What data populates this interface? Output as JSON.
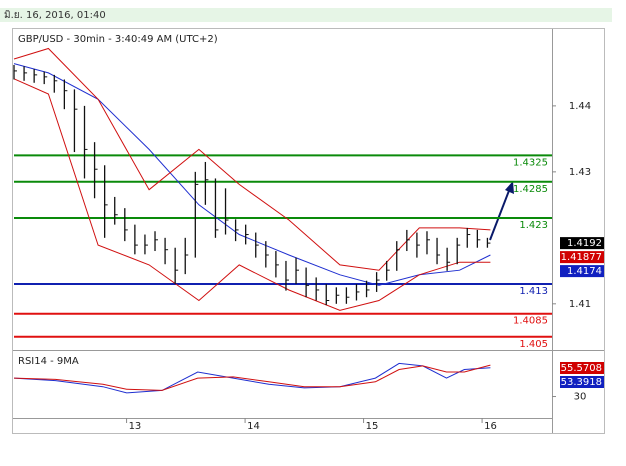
{
  "header": {
    "date": "มิ.ย. 16, 2016, 01:40"
  },
  "chart_data": [
    {
      "type": "hlc",
      "title": "GBP/USD - 30min - 3:40:49 AM (UTC+2)",
      "color": "#111111",
      "x": [
        12.05,
        12.135,
        12.22,
        12.305,
        12.39,
        12.475,
        12.56,
        12.645,
        12.73,
        12.815,
        12.9,
        12.985,
        13.07,
        13.155,
        13.24,
        13.325,
        13.41,
        13.495,
        13.58,
        13.665,
        13.75,
        13.835,
        13.92,
        14.005,
        14.09,
        14.175,
        14.26,
        14.345,
        14.43,
        14.515,
        14.6,
        14.685,
        14.77,
        14.855,
        14.94,
        15.025,
        15.11,
        15.195,
        15.28,
        15.365,
        15.45,
        15.535,
        15.62,
        15.705,
        15.79,
        15.875,
        15.96,
        16.045
      ],
      "high": [
        1.4462,
        1.446,
        1.4456,
        1.4452,
        1.4447,
        1.444,
        1.4425,
        1.44,
        1.4345,
        1.431,
        1.4262,
        1.4245,
        1.422,
        1.4205,
        1.421,
        1.42,
        1.4185,
        1.42,
        1.43,
        1.4315,
        1.429,
        1.4275,
        1.4228,
        1.422,
        1.4208,
        1.4195,
        1.418,
        1.4165,
        1.417,
        1.4155,
        1.414,
        1.413,
        1.4125,
        1.4125,
        1.413,
        1.4135,
        1.4148,
        1.4165,
        1.4195,
        1.4212,
        1.4208,
        1.421,
        1.42,
        1.4185,
        1.42,
        1.4215,
        1.4212,
        1.42
      ],
      "low": [
        1.444,
        1.4438,
        1.4435,
        1.4433,
        1.442,
        1.4395,
        1.433,
        1.429,
        1.426,
        1.42,
        1.422,
        1.4195,
        1.4175,
        1.4175,
        1.418,
        1.416,
        1.413,
        1.4145,
        1.417,
        1.425,
        1.42,
        1.4205,
        1.4195,
        1.419,
        1.417,
        1.4155,
        1.414,
        1.412,
        1.413,
        1.411,
        1.4105,
        1.4098,
        1.41,
        1.41,
        1.4105,
        1.411,
        1.4118,
        1.4135,
        1.415,
        1.418,
        1.417,
        1.4175,
        1.416,
        1.415,
        1.416,
        1.4185,
        1.4185,
        1.4185
      ],
      "close": [
        1.4453,
        1.445,
        1.4447,
        1.4444,
        1.4438,
        1.4423,
        1.4395,
        1.4334,
        1.4304,
        1.425,
        1.4235,
        1.4212,
        1.4189,
        1.4189,
        1.4197,
        1.4182,
        1.4151,
        1.4174,
        1.4281,
        1.4288,
        1.4212,
        1.4227,
        1.4212,
        1.4205,
        1.4189,
        1.4174,
        1.4159,
        1.4136,
        1.4151,
        1.4128,
        1.4121,
        1.4105,
        1.4113,
        1.411,
        1.4118,
        1.4121,
        1.4136,
        1.4151,
        1.4182,
        1.4197,
        1.4189,
        1.4197,
        1.4174,
        1.4163,
        1.4189,
        1.4205,
        1.4197,
        1.4192
      ],
      "overlay_x": [
        12.05,
        12.34,
        12.76,
        13.19,
        13.61,
        13.95,
        14.37,
        14.8,
        15.13,
        15.47,
        15.81,
        16.07
      ],
      "overlays": [
        {
          "color": "#1f2fd0",
          "values": [
            1.4464,
            1.445,
            1.441,
            1.4334,
            1.425,
            1.4205,
            1.4174,
            1.4144,
            1.4128,
            1.4144,
            1.4151,
            1.4174
          ]
        },
        {
          "color": "#d01010",
          "values": [
            1.4471,
            1.4487,
            1.441,
            1.4273,
            1.4334,
            1.4281,
            1.4227,
            1.4159,
            1.4151,
            1.4215,
            1.4215,
            1.4212
          ]
        },
        {
          "color": "#d01010",
          "values": [
            1.4441,
            1.4418,
            1.4189,
            1.4159,
            1.4105,
            1.4159,
            1.4121,
            1.409,
            1.4105,
            1.4144,
            1.4163,
            1.4163
          ]
        }
      ],
      "levels": [
        {
          "value": 1.4325,
          "color": "#0a8a0a"
        },
        {
          "value": 1.4285,
          "color": "#0a8a0a"
        },
        {
          "value": 1.423,
          "color": "#0a8a0a"
        },
        {
          "value": 1.413,
          "color": "#1020b0"
        },
        {
          "value": 1.4085,
          "color": "#e01010"
        },
        {
          "value": 1.405,
          "color": "#e01010"
        }
      ],
      "price_tags": [
        {
          "value": 1.4192,
          "color": "#000000"
        },
        {
          "value": 1.41877,
          "color": "#d00000"
        },
        {
          "value": 1.4174,
          "color": "#1020c0"
        }
      ],
      "xlim": [
        12.05,
        16.59
      ],
      "xticks": [
        13,
        14,
        15,
        16
      ],
      "ylim": [
        1.403,
        1.4515
      ],
      "yticks": [
        1.41,
        1.43,
        1.44
      ]
    },
    {
      "type": "line",
      "title": "RSI14 - 9MA",
      "x": [
        12.05,
        12.4,
        12.8,
        13.0,
        13.3,
        13.6,
        13.9,
        14.2,
        14.5,
        14.8,
        15.1,
        15.3,
        15.5,
        15.7,
        15.85,
        16.07
      ],
      "series": [
        {
          "color": "#1f2fd0",
          "values": [
            45,
            43,
            38,
            33,
            35,
            50,
            45,
            40,
            37,
            38,
            45,
            57,
            55,
            45,
            52,
            53.4
          ]
        },
        {
          "color": "#d01010",
          "values": [
            45,
            44,
            40,
            36,
            35,
            45,
            46,
            42,
            38,
            38,
            42,
            52,
            55,
            50,
            50,
            55.6
          ]
        }
      ],
      "price_tags": [
        {
          "value": 55.5708,
          "color": "#d00000"
        },
        {
          "value": 53.3918,
          "color": "#1020c0"
        }
      ],
      "xlim": [
        12.05,
        16.59
      ],
      "ylim": [
        12.5,
        66.3
      ],
      "yticks": [
        30
      ]
    }
  ]
}
